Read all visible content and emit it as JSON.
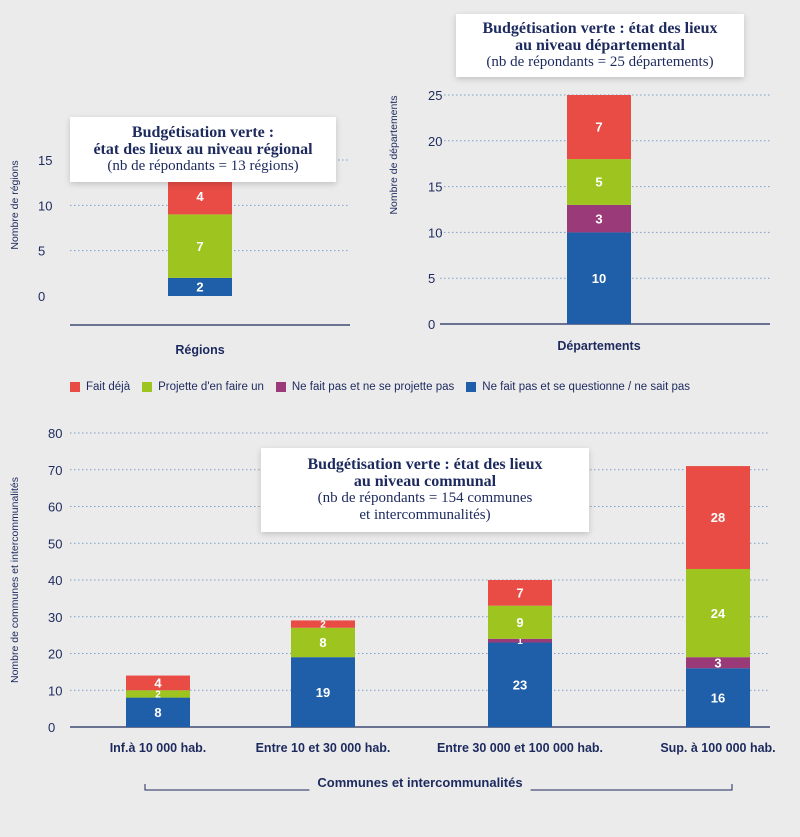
{
  "colors": {
    "fait": "#e84c45",
    "projette": "#9dc41f",
    "nefait": "#9b3a79",
    "questionne": "#1f5ea8",
    "text": "#1d2a5e",
    "grid": "#7aa0c8",
    "axis": "#1d2a5e",
    "background": "#ebebeb"
  },
  "legend": [
    {
      "key": "fait",
      "label": "Fait déjà"
    },
    {
      "key": "projette",
      "label": "Projette d'en faire un"
    },
    {
      "key": "nefait",
      "label": "Ne fait pas et ne se projette pas"
    },
    {
      "key": "questionne",
      "label": "Ne fait pas et se questionne / ne sait pas"
    }
  ],
  "titles": {
    "regional": {
      "line1": "Budgétisation verte :",
      "line2": "état des lieux au niveau régional",
      "line3": "(nb de répondants = 13 régions)"
    },
    "departemental": {
      "line1": "Budgétisation verte : état des lieux",
      "line2": "au niveau départemental",
      "line3": "(nb de répondants = 25 départements)"
    },
    "communal": {
      "line1": "Budgétisation verte : état des lieux",
      "line2": "au niveau communal",
      "line3": "(nb de répondants = 154 communes",
      "line4": "et intercommunalités)"
    }
  },
  "group_label": "Communes et intercommunalités",
  "chart_data": [
    {
      "id": "regional",
      "type": "bar",
      "stacked": true,
      "title": "Budgétisation verte : état des lieux au niveau régional (nb de répondants = 13 régions)",
      "ylabel": "Nombre de régions",
      "xlabel": "",
      "categories": [
        "Régions"
      ],
      "ylim": [
        0,
        15
      ],
      "yticks": [
        0,
        5,
        10,
        15
      ],
      "grid": true,
      "series": [
        {
          "name": "Ne fait pas et se questionne / ne sait pas",
          "key": "questionne",
          "values": [
            2
          ]
        },
        {
          "name": "Ne fait pas et ne se projette pas",
          "key": "nefait",
          "values": [
            0
          ]
        },
        {
          "name": "Projette d'en faire un",
          "key": "projette",
          "values": [
            7
          ]
        },
        {
          "name": "Fait déjà",
          "key": "fait",
          "values": [
            4
          ]
        }
      ]
    },
    {
      "id": "departemental",
      "type": "bar",
      "stacked": true,
      "title": "Budgétisation verte : état des lieux au niveau départemental (nb de répondants = 25 départements)",
      "ylabel": "Nombre de départements",
      "xlabel": "",
      "categories": [
        "Départements"
      ],
      "ylim": [
        0,
        25
      ],
      "yticks": [
        0,
        5,
        10,
        15,
        20,
        25
      ],
      "grid": true,
      "series": [
        {
          "name": "Ne fait pas et se questionne / ne sait pas",
          "key": "questionne",
          "values": [
            10
          ]
        },
        {
          "name": "Ne fait pas et ne se projette pas",
          "key": "nefait",
          "values": [
            3
          ]
        },
        {
          "name": "Projette d'en faire un",
          "key": "projette",
          "values": [
            5
          ]
        },
        {
          "name": "Fait déjà",
          "key": "fait",
          "values": [
            7
          ]
        }
      ]
    },
    {
      "id": "communal",
      "type": "bar",
      "stacked": true,
      "title": "Budgétisation verte : état des lieux au niveau communal (nb de répondants = 154 communes et intercommunalités)",
      "ylabel": "Nombre de communes et intercommunalités",
      "xlabel": "Communes et intercommunalités",
      "categories": [
        "Inf.à 10 000 hab.",
        "Entre 10 et 30 000 hab.",
        "Entre 30 000 et 100 000 hab.",
        "Sup. à 100 000 hab."
      ],
      "ylim": [
        0,
        80
      ],
      "yticks": [
        0,
        10,
        20,
        30,
        40,
        50,
        60,
        70,
        80
      ],
      "grid": true,
      "series": [
        {
          "name": "Ne fait pas et se questionne / ne sait pas",
          "key": "questionne",
          "values": [
            8,
            19,
            23,
            16
          ]
        },
        {
          "name": "Ne fait pas et ne se projette pas",
          "key": "nefait",
          "values": [
            0,
            0,
            1,
            3
          ]
        },
        {
          "name": "Projette d'en faire un",
          "key": "projette",
          "values": [
            2,
            8,
            9,
            24
          ]
        },
        {
          "name": "Fait déjà",
          "key": "fait",
          "values": [
            4,
            2,
            7,
            28
          ]
        }
      ]
    }
  ]
}
